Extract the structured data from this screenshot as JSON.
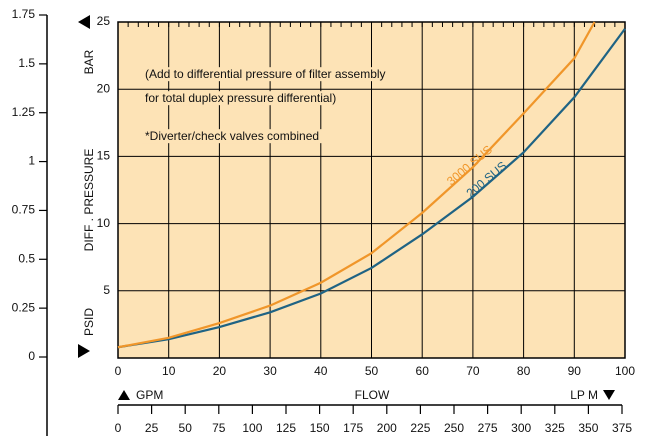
{
  "chart_data": {
    "type": "line",
    "annotations": [
      "(Add to differential pressure of filter assembly",
      "for total duplex pressure differential)",
      "*Diverter/check valves combined"
    ],
    "ylabel_top": "BAR",
    "ylabel": "DIFF . PRESSURE",
    "ylabel_bottom": "PSID",
    "xlabel_left": "GPM",
    "xlabel": "FLOW",
    "xlabel_right": "LP M",
    "xlim": [
      0,
      100
    ],
    "xticks": [
      0,
      10,
      20,
      30,
      40,
      50,
      60,
      70,
      80,
      90,
      100
    ],
    "ylim": [
      0,
      25
    ],
    "yticks": [
      5,
      10,
      15,
      20,
      25
    ],
    "bar_lim": [
      0,
      1.75
    ],
    "bar_ticks": [
      0,
      0.25,
      0.5,
      1.25,
      1.5,
      1.75,
      0.75,
      1
    ],
    "lpm_lim": [
      0,
      375
    ],
    "lpm_ticks": [
      0,
      25,
      50,
      75,
      100,
      125,
      150,
      175,
      200,
      225,
      250,
      275,
      300,
      325,
      375,
      350
    ],
    "grid": true,
    "background": "#fde3b6",
    "series": [
      {
        "name": "200 SUS",
        "color": "#1f6384",
        "x": [
          0,
          10,
          20,
          30,
          40,
          50,
          60,
          70,
          80,
          90,
          100
        ],
        "values": [
          0.8,
          1.4,
          2.3,
          3.4,
          4.8,
          6.7,
          9.2,
          12,
          15.3,
          19.4,
          24.5
        ]
      },
      {
        "name": "3000 SUS",
        "color": "#f0962a",
        "x": [
          0,
          10,
          20,
          30,
          40,
          50,
          60,
          70,
          80,
          90,
          94
        ],
        "values": [
          0.8,
          1.5,
          2.6,
          3.9,
          5.6,
          7.8,
          10.8,
          14.2,
          18.2,
          22.3,
          25
        ]
      }
    ]
  }
}
